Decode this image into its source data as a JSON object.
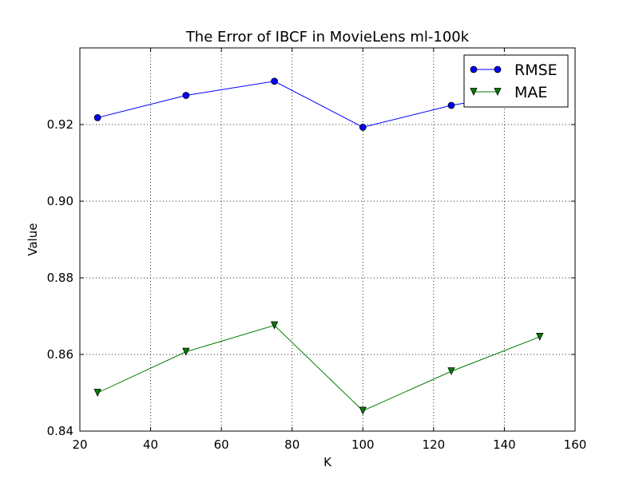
{
  "chart_data": {
    "type": "line",
    "title": "The Error of IBCF in MovieLens ml-100k",
    "xlabel": "K",
    "ylabel": "Value",
    "xlim": [
      20,
      160
    ],
    "ylim": [
      0.84,
      0.94
    ],
    "xticks": [
      "20",
      "40",
      "60",
      "80",
      "100",
      "120",
      "140",
      "160"
    ],
    "yticks": [
      "0.84",
      "0.86",
      "0.88",
      "0.90",
      "0.92"
    ],
    "grid": true,
    "legend_position": "top-right",
    "x": [
      25,
      50,
      75,
      100,
      125,
      150
    ],
    "series": [
      {
        "name": "RMSE",
        "values": [
          0.9218,
          0.9276,
          0.9313,
          0.9193,
          0.925,
          0.929
        ],
        "color": "#0000ff",
        "marker": "circle"
      },
      {
        "name": "MAE",
        "values": [
          0.85,
          0.8607,
          0.8676,
          0.8453,
          0.8556,
          0.8646
        ],
        "color": "#007f00",
        "marker": "triangle-down"
      }
    ]
  }
}
